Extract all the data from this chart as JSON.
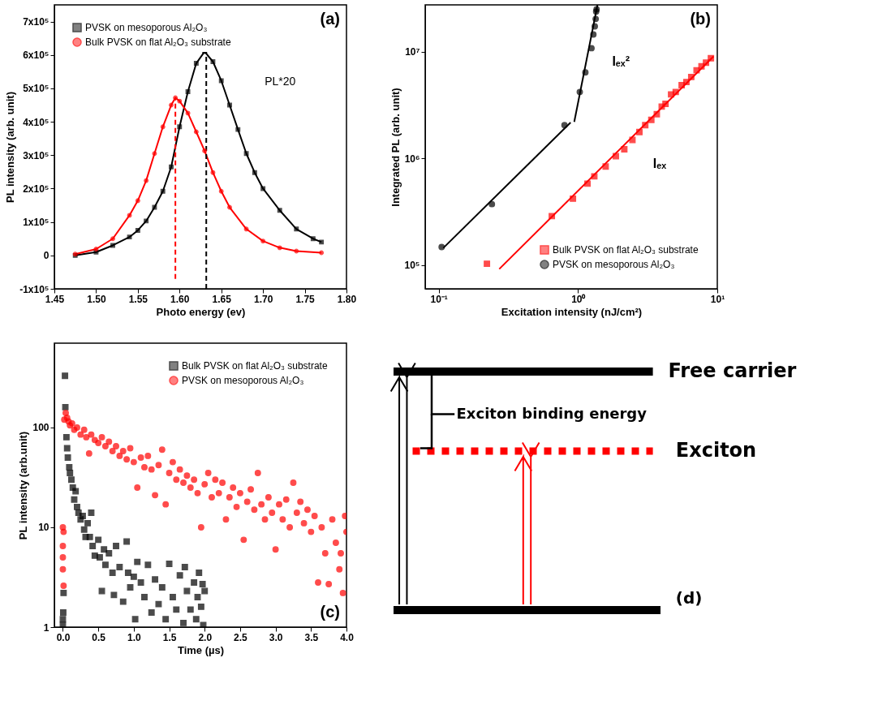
{
  "chart_data": [
    {
      "type": "line",
      "xlabel": "Photo energy (ev)",
      "ylabel": "PL intensity (arb. unit)",
      "xlim": [
        1.45,
        1.8
      ],
      "ylim": [
        -100000,
        750000
      ],
      "xticks": [
        {
          "value": 1.45,
          "label": "1.45"
        },
        {
          "value": 1.5,
          "label": "1.50"
        },
        {
          "value": 1.55,
          "label": "1.55"
        },
        {
          "value": 1.6,
          "label": "1.60"
        },
        {
          "value": 1.65,
          "label": "1.65"
        },
        {
          "value": 1.7,
          "label": "1.70"
        },
        {
          "value": 1.75,
          "label": "1.75"
        },
        {
          "value": 1.8,
          "label": "1.80"
        }
      ],
      "yticks": [
        {
          "value": -100000,
          "label": "-1x10⁵"
        },
        0,
        {
          "value": 100000,
          "label": "1x10⁵"
        },
        {
          "value": 200000,
          "label": "2x10⁵"
        },
        {
          "value": 300000,
          "label": "3x10⁵"
        },
        {
          "value": 400000,
          "label": "4x10⁵"
        },
        {
          "value": 500000,
          "label": "5x10⁵"
        },
        {
          "value": 600000,
          "label": "6x10⁵"
        },
        {
          "value": 700000,
          "label": "7x10⁵"
        }
      ],
      "grid": false,
      "legend": "top left",
      "series": [
        {
          "name": "PVSK on mesoporous Al₂O₃",
          "color": "#000000",
          "marker": "square",
          "x": [
            1.475,
            1.5,
            1.52,
            1.54,
            1.55,
            1.56,
            1.57,
            1.58,
            1.59,
            1.6,
            1.61,
            1.62,
            1.63,
            1.64,
            1.65,
            1.66,
            1.67,
            1.68,
            1.69,
            1.7,
            1.72,
            1.74,
            1.76,
            1.77
          ],
          "values": [
            0,
            10000,
            30000,
            55000,
            75000,
            103000,
            144000,
            192000,
            265000,
            385000,
            490000,
            575000,
            610000,
            580000,
            523000,
            450000,
            377000,
            305000,
            248000,
            200000,
            135000,
            79000,
            50000,
            40000
          ]
        },
        {
          "name": "Bulk PVSK on flat Al₂O₃ substrate",
          "color": "#ff0000",
          "marker": "circle",
          "x": [
            1.475,
            1.5,
            1.52,
            1.54,
            1.55,
            1.56,
            1.57,
            1.58,
            1.59,
            1.595,
            1.6,
            1.61,
            1.62,
            1.63,
            1.64,
            1.65,
            1.66,
            1.68,
            1.7,
            1.72,
            1.74,
            1.77
          ],
          "values": [
            4000,
            19000,
            50000,
            120000,
            164000,
            224000,
            305000,
            385000,
            450000,
            472000,
            462000,
            426000,
            370000,
            313000,
            248000,
            192000,
            144000,
            79000,
            43000,
            23000,
            13000,
            8000
          ]
        },
        {
          "type": "line",
          "color": "#ff0000",
          "marker": "none",
          "line_style": "dashed",
          "x": [
            1.595,
            1.595
          ],
          "values": [
            -70000,
            472000
          ]
        },
        {
          "type": "line",
          "color": "#000000",
          "marker": "none",
          "line_style": "dashed",
          "x": [
            1.632,
            1.632
          ],
          "values": [
            -100000,
            610000
          ]
        }
      ],
      "annotations": [
        "(a)",
        "PL*20"
      ]
    },
    {
      "type": "scatter",
      "xlabel": "Excitation intensity  (nJ/cm²)",
      "ylabel": "Integrated PL  (arb. unit)",
      "log": "xy",
      "xlim": [
        0.08,
        10
      ],
      "ylim": [
        60000,
        27500000
      ],
      "xticks": [
        {
          "value": 0.1,
          "label": "10⁻¹"
        },
        {
          "value": 1,
          "label": "10⁰"
        },
        {
          "value": 10,
          "label": "10¹"
        }
      ],
      "yticks": [
        {
          "value": 100000,
          "label": "10⁵"
        },
        {
          "value": 1000000,
          "label": "10⁶"
        },
        {
          "value": 10000000,
          "label": "10⁷"
        }
      ],
      "grid": false,
      "legend": "bottom right",
      "series": [
        {
          "name": "Bulk PVSK on flat Al₂O₃ substrate",
          "color": "#ff0000",
          "marker": "square",
          "x": [
            0.222,
            0.649,
            0.92,
            1.17,
            1.31,
            1.58,
            1.87,
            2.15,
            2.46,
            2.76,
            3.04,
            3.36,
            3.68,
            3.99,
            4.25,
            4.66,
            5.03,
            5.55,
            6.0,
            6.5,
            7.1,
            7.7,
            8.3,
            9.0
          ],
          "values": [
            103000,
            288000,
            420000,
            580000,
            680000,
            840000,
            1050000,
            1220000,
            1490000,
            1770000,
            2050000,
            2300000,
            2600000,
            3060000,
            3250000,
            3980000,
            4200000,
            4860000,
            5200000,
            5800000,
            6700000,
            7300000,
            7900000,
            8700000
          ]
        },
        {
          "name": "PVSK on mesoporous Al₂O₃",
          "color": "#000000",
          "marker": "circle",
          "x": [
            0.105,
            0.241,
            0.8,
            1.03,
            1.13,
            1.25,
            1.29,
            1.32,
            1.34,
            1.35,
            1.36
          ],
          "values": [
            148000,
            373000,
            2050000,
            4200000,
            6400000,
            10800000,
            14500000,
            17300000,
            20300000,
            23800000,
            25000000
          ]
        },
        {
          "type": "line",
          "color": "#000000",
          "x": [
            0.108,
            0.885
          ],
          "values": [
            145000,
            2170000
          ]
        },
        {
          "type": "line",
          "color": "#000000",
          "x": [
            0.94,
            1.38
          ],
          "values": [
            2200000,
            27500000
          ]
        },
        {
          "type": "line",
          "color": "#ff0000",
          "x": [
            0.272,
            9.4
          ],
          "values": [
            92000,
            9060000
          ]
        }
      ],
      "annotations": [
        "(b)",
        "Iₑₓ²",
        "Iₑₓ"
      ]
    },
    {
      "type": "scatter",
      "xlabel": "Time (µs)",
      "ylabel": "PL intensity (arb.unit)",
      "log": "y",
      "xlim": [
        -0.12,
        4.0
      ],
      "ylim": [
        1,
        700
      ],
      "xticks": [
        {
          "value": 0,
          "label": "0.0"
        },
        {
          "value": 0.5,
          "label": "0.5"
        },
        {
          "value": 1,
          "label": "1.0"
        },
        {
          "value": 1.5,
          "label": "1.5"
        },
        {
          "value": 2,
          "label": "2.0"
        },
        {
          "value": 2.5,
          "label": "2.5"
        },
        {
          "value": 3,
          "label": "3.0"
        },
        {
          "value": 3.5,
          "label": "3.5"
        },
        {
          "value": 4,
          "label": "4.0"
        }
      ],
      "yticks": [
        1,
        10,
        100
      ],
      "grid": false,
      "legend": "top right",
      "series": [
        {
          "name": "Bulk PVSK on flat Al₂O₃ substrate",
          "color": "#000000",
          "marker": "square",
          "x": [
            0.0,
            0.005,
            0.01,
            0.0,
            0.03,
            0.035,
            0.05,
            0.06,
            0.07,
            0.09,
            0.1,
            0.12,
            0.14,
            0.16,
            0.18,
            0.2,
            0.22,
            0.25,
            0.28,
            0.3,
            0.32,
            0.35,
            0.38,
            0.4,
            0.42,
            0.45,
            0.5,
            0.52,
            0.55,
            0.58,
            0.6,
            0.65,
            0.7,
            0.72,
            0.75,
            0.8,
            0.85,
            0.9,
            0.92,
            0.95,
            1.0,
            1.02,
            1.05,
            1.1,
            1.15,
            1.2,
            1.25,
            1.3,
            1.35,
            1.4,
            1.45,
            1.5,
            1.55,
            1.6,
            1.65,
            1.7,
            1.72,
            1.75,
            1.8,
            1.85,
            1.88,
            1.9,
            1.92,
            1.95,
            1.97,
            1.98,
            2.0
          ],
          "values": [
            1.2,
            1.4,
            2.2,
            1.05,
            330,
            160,
            80,
            62,
            50,
            40,
            35,
            30,
            25,
            19,
            23,
            16,
            14,
            12,
            13,
            9.5,
            8,
            11,
            8,
            14,
            6.5,
            5.2,
            7.5,
            5,
            2.3,
            6,
            4.2,
            5.5,
            3.5,
            2.1,
            6.5,
            4,
            1.8,
            7.2,
            3.5,
            2.5,
            3.2,
            1.2,
            4.5,
            2.8,
            2,
            4.2,
            1.4,
            3,
            1.7,
            2.5,
            1.2,
            4.3,
            2,
            1.5,
            3.3,
            1.1,
            4,
            2.3,
            1.5,
            2.8,
            1.2,
            2,
            3.5,
            1.6,
            2.7,
            1.05,
            2.3
          ]
        },
        {
          "name": "PVSK on mesoporous Al₂O₃",
          "color": "#ff0000",
          "marker": "circle",
          "x": [
            0.0,
            0.01,
            0.0,
            0.0,
            0.0,
            0.01,
            0.02,
            0.04,
            0.06,
            0.08,
            0.1,
            0.13,
            0.16,
            0.2,
            0.25,
            0.3,
            0.33,
            0.37,
            0.4,
            0.45,
            0.5,
            0.55,
            0.6,
            0.65,
            0.7,
            0.75,
            0.8,
            0.85,
            0.9,
            0.95,
            1.0,
            1.05,
            1.1,
            1.15,
            1.2,
            1.25,
            1.3,
            1.35,
            1.4,
            1.45,
            1.5,
            1.55,
            1.6,
            1.65,
            1.7,
            1.75,
            1.8,
            1.85,
            1.9,
            1.95,
            2.0,
            2.05,
            2.1,
            2.15,
            2.2,
            2.25,
            2.3,
            2.35,
            2.4,
            2.45,
            2.5,
            2.55,
            2.6,
            2.65,
            2.7,
            2.75,
            2.8,
            2.85,
            2.9,
            2.95,
            3.0,
            3.05,
            3.1,
            3.15,
            3.2,
            3.25,
            3.3,
            3.35,
            3.4,
            3.45,
            3.5,
            3.55,
            3.6,
            3.65,
            3.7,
            3.75,
            3.8,
            3.85,
            3.9,
            3.95,
            4.0,
            3.98,
            3.92
          ],
          "values": [
            10,
            9,
            6.5,
            5,
            3.8,
            2.6,
            120,
            140,
            125,
            115,
            105,
            110,
            95,
            100,
            85,
            95,
            80,
            55,
            85,
            75,
            70,
            80,
            65,
            72,
            58,
            65,
            52,
            58,
            48,
            62,
            45,
            25,
            50,
            40,
            52,
            38,
            21,
            42,
            60,
            17,
            35,
            45,
            30,
            38,
            28,
            33,
            25,
            30,
            22,
            10,
            27,
            35,
            20,
            30,
            22,
            28,
            12,
            20,
            25,
            16,
            22,
            7.5,
            18,
            24,
            15,
            35,
            17,
            12,
            20,
            14,
            6,
            17,
            12,
            19,
            10,
            28,
            14,
            18,
            11,
            15,
            9,
            13,
            2.8,
            10,
            5.5,
            2.7,
            12,
            7,
            3.8,
            2.2,
            9,
            13,
            5.5
          ]
        }
      ],
      "annotations": [
        "(c)"
      ]
    },
    {
      "type": "other",
      "annotations": [
        "Free carrier",
        "Exciton binding energy",
        "Exciton",
        "(d)"
      ]
    }
  ]
}
